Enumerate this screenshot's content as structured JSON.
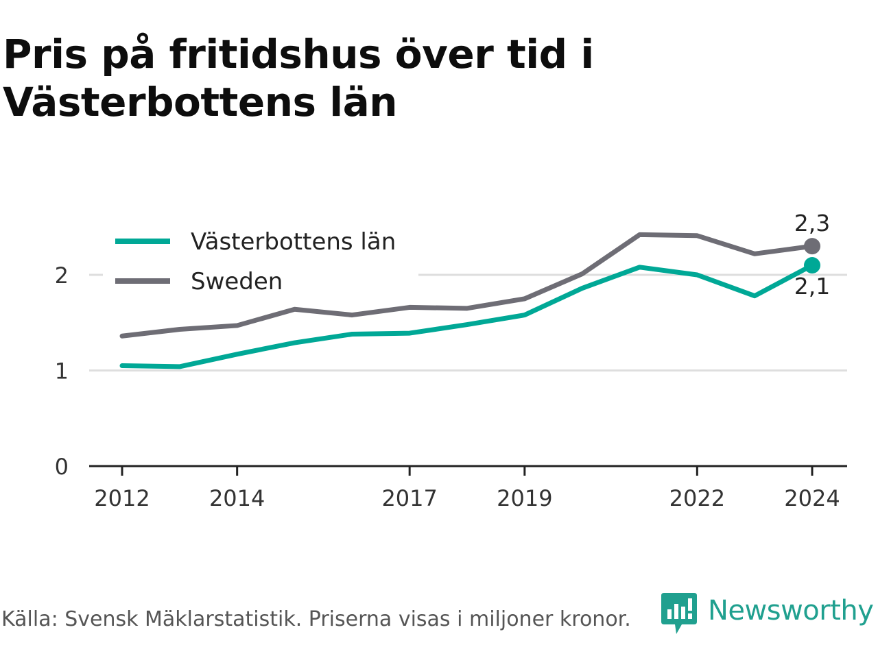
{
  "title": "Pris på fritidshus över tid i Västerbottens län",
  "source": "Källa: Svensk Mäklarstatistik. Priserna visas i miljoner kronor.",
  "brand": {
    "name": "Newsworthy",
    "icon": "newsworthy-logo-icon",
    "color": "#20a08f"
  },
  "chart_data": {
    "type": "line",
    "x": [
      2012,
      2013,
      2014,
      2015,
      2016,
      2017,
      2018,
      2019,
      2020,
      2021,
      2022,
      2023,
      2024
    ],
    "x_tick_labels": [
      "2012",
      "2014",
      "2017",
      "2019",
      "2022",
      "2024"
    ],
    "y_tick_labels": [
      "0",
      "1",
      "2"
    ],
    "ylim": [
      0,
      2.4
    ],
    "grid": true,
    "legend_position": "top-left",
    "series": [
      {
        "name": "Västerbottens län",
        "color": "#00a896",
        "values": [
          1.05,
          1.04,
          1.17,
          1.29,
          1.38,
          1.39,
          1.48,
          1.58,
          1.86,
          2.08,
          2.0,
          1.78,
          2.1
        ],
        "end_label": "2,1"
      },
      {
        "name": "Sweden",
        "color": "#6e6d75",
        "values": [
          1.36,
          1.43,
          1.47,
          1.64,
          1.58,
          1.66,
          1.65,
          1.75,
          2.01,
          2.42,
          2.41,
          2.22,
          2.3
        ],
        "end_label": "2,3"
      }
    ]
  }
}
